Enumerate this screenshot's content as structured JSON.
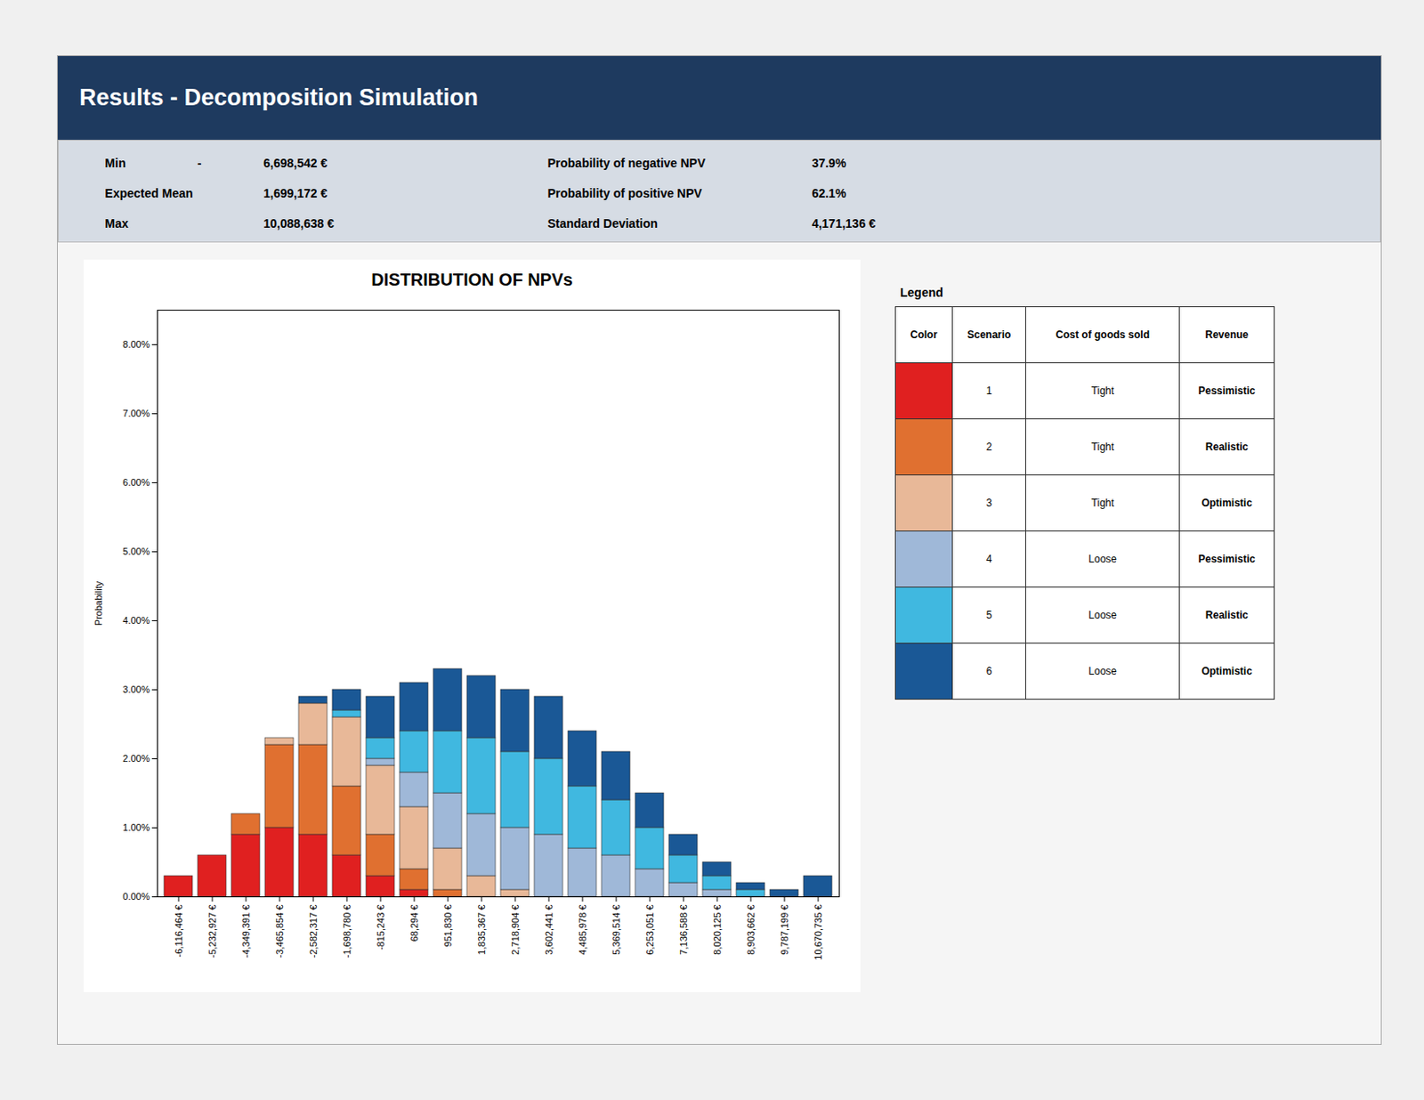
{
  "title": "Results - Decomposition Simulation",
  "stats": [
    {
      "label": "Min",
      "sign": "-",
      "value": "6,698,542 €",
      "right_label": "Probability of negative NPV",
      "right_value": "37.9%"
    },
    {
      "label": "Expected Mean",
      "value": "1,699,172 €",
      "right_label": "Probability of positive NPV",
      "right_value": "62.1%"
    },
    {
      "label": "Max",
      "value": "10,088,638 €",
      "right_label": "Standard Deviation",
      "right_value": "4,171,136 €"
    }
  ],
  "chart_data": {
    "type": "bar",
    "stacked": true,
    "title": "DISTRIBUTION OF NPVs",
    "ylabel": "Probability",
    "grid": false,
    "legend": "right",
    "legend_title": "Legend",
    "legend_header": [
      "Color",
      "Scenario",
      "Cost of goods sold",
      "Revenue"
    ],
    "categories": [
      "-6,116,464 €",
      "-5,232,927 €",
      "-4,349,391 €",
      "-3,465,854 €",
      "-2,582,317 €",
      "-1,698,780 €",
      "-815,243 €",
      "68,294 €",
      "951,830 €",
      "1,835,367 €",
      "2,718,904 €",
      "3,602,441 €",
      "4,485,978 €",
      "5,369,514 €",
      "6,253,051 €",
      "7,136,588 €",
      "8,020,125 €",
      "8,903,662 €",
      "9,787,199 €",
      "10,670,735 €"
    ],
    "series": [
      {
        "name": "1",
        "color": "#e02020",
        "cost_of_goods": "Tight",
        "revenue": "Pessimistic",
        "values": [
          0.003,
          0.006,
          0.009,
          0.01,
          0.009,
          0.006,
          0.003,
          0.001,
          0.0,
          0.0,
          0.0,
          0.0,
          0.0,
          0.0,
          0.0,
          0.0,
          0.0,
          0.0,
          0.0,
          0.0
        ]
      },
      {
        "name": "2",
        "color": "#e07030",
        "cost_of_goods": "Tight",
        "revenue": "Realistic",
        "values": [
          0.0,
          0.0,
          0.003,
          0.012,
          0.013,
          0.01,
          0.006,
          0.003,
          0.001,
          0.0,
          0.0,
          0.0,
          0.0,
          0.0,
          0.0,
          0.0,
          0.0,
          0.0,
          0.0,
          0.0
        ]
      },
      {
        "name": "3",
        "color": "#e8b898",
        "cost_of_goods": "Tight",
        "revenue": "Optimistic",
        "values": [
          0.0,
          0.0,
          0.0,
          0.001,
          0.006,
          0.01,
          0.01,
          0.009,
          0.006,
          0.003,
          0.001,
          0.0,
          0.0,
          0.0,
          0.0,
          0.0,
          0.0,
          0.0,
          0.0,
          0.0
        ]
      },
      {
        "name": "4",
        "color": "#9fb8d8",
        "cost_of_goods": "Loose",
        "revenue": "Pessimistic",
        "values": [
          0.0,
          0.0,
          0.0,
          0.0,
          0.0,
          0.0,
          0.001,
          0.005,
          0.008,
          0.009,
          0.009,
          0.009,
          0.007,
          0.006,
          0.004,
          0.002,
          0.001,
          0.0,
          0.0,
          0.0
        ]
      },
      {
        "name": "5",
        "color": "#40b8e0",
        "cost_of_goods": "Loose",
        "revenue": "Realistic",
        "values": [
          0.0,
          0.0,
          0.0,
          0.0,
          0.0,
          0.001,
          0.003,
          0.006,
          0.009,
          0.011,
          0.011,
          0.011,
          0.009,
          0.008,
          0.006,
          0.004,
          0.002,
          0.001,
          0.0,
          0.0
        ]
      },
      {
        "name": "6",
        "color": "#1a5896",
        "cost_of_goods": "Loose",
        "revenue": "Optimistic",
        "values": [
          0.0,
          0.0,
          0.0,
          0.0,
          0.001,
          0.003,
          0.006,
          0.007,
          0.009,
          0.009,
          0.009,
          0.009,
          0.008,
          0.007,
          0.005,
          0.003,
          0.002,
          0.001,
          0.001,
          0.003
        ]
      }
    ],
    "ylim": [
      0,
      0.085
    ],
    "yticks": [
      {
        "value": 0.0,
        "label": "0.00%"
      },
      {
        "value": 0.01,
        "label": "1.00%"
      },
      {
        "value": 0.02,
        "label": "2.00%"
      },
      {
        "value": 0.03,
        "label": "3.00%"
      },
      {
        "value": 0.04,
        "label": "4.00%"
      },
      {
        "value": 0.05,
        "label": "5.00%"
      },
      {
        "value": 0.06,
        "label": "6.00%"
      },
      {
        "value": 0.07,
        "label": "7.00%"
      },
      {
        "value": 0.08,
        "label": "8.00%"
      }
    ]
  }
}
